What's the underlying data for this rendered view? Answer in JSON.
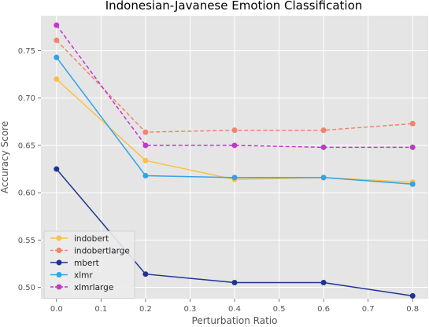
{
  "chart_data": {
    "type": "line",
    "title": "Indonesian-Javanese Emotion Classification",
    "xlabel": "Perturbation Ratio",
    "ylabel": "Accuracy Score",
    "x": [
      0.0,
      0.2,
      0.4,
      0.6,
      0.8
    ],
    "xlim": [
      -0.035,
      0.835
    ],
    "ylim": [
      0.488,
      0.787
    ],
    "xticks": [
      0.0,
      0.1,
      0.2,
      0.3,
      0.4,
      0.5,
      0.6,
      0.7,
      0.8
    ],
    "xtick_labels": [
      "0.0",
      "0.1",
      "0.2",
      "0.3",
      "0.4",
      "0.5",
      "0.6",
      "0.7",
      "0.8"
    ],
    "yticks": [
      0.5,
      0.55,
      0.6,
      0.65,
      0.7,
      0.75
    ],
    "ytick_labels": [
      "0.50",
      "0.55",
      "0.60",
      "0.65",
      "0.70",
      "0.75"
    ],
    "grid": true,
    "legend_position": "lower-left",
    "background": "#e5e5e5",
    "series": [
      {
        "name": "indobert",
        "color": "#fbc046",
        "dashed": false,
        "values": [
          0.72,
          0.634,
          0.614,
          0.616,
          0.611
        ]
      },
      {
        "name": "indobertlarge",
        "color": "#f3836b",
        "dashed": true,
        "values": [
          0.761,
          0.664,
          0.666,
          0.666,
          0.673
        ]
      },
      {
        "name": "mbert",
        "color": "#1f3491",
        "dashed": false,
        "values": [
          0.625,
          0.514,
          0.505,
          0.505,
          0.491
        ]
      },
      {
        "name": "xlmr",
        "color": "#31a4eb",
        "dashed": false,
        "values": [
          0.743,
          0.618,
          0.616,
          0.616,
          0.609
        ]
      },
      {
        "name": "xlmrlarge",
        "color": "#c535c9",
        "dashed": true,
        "values": [
          0.777,
          0.65,
          0.65,
          0.648,
          0.648
        ]
      }
    ]
  }
}
